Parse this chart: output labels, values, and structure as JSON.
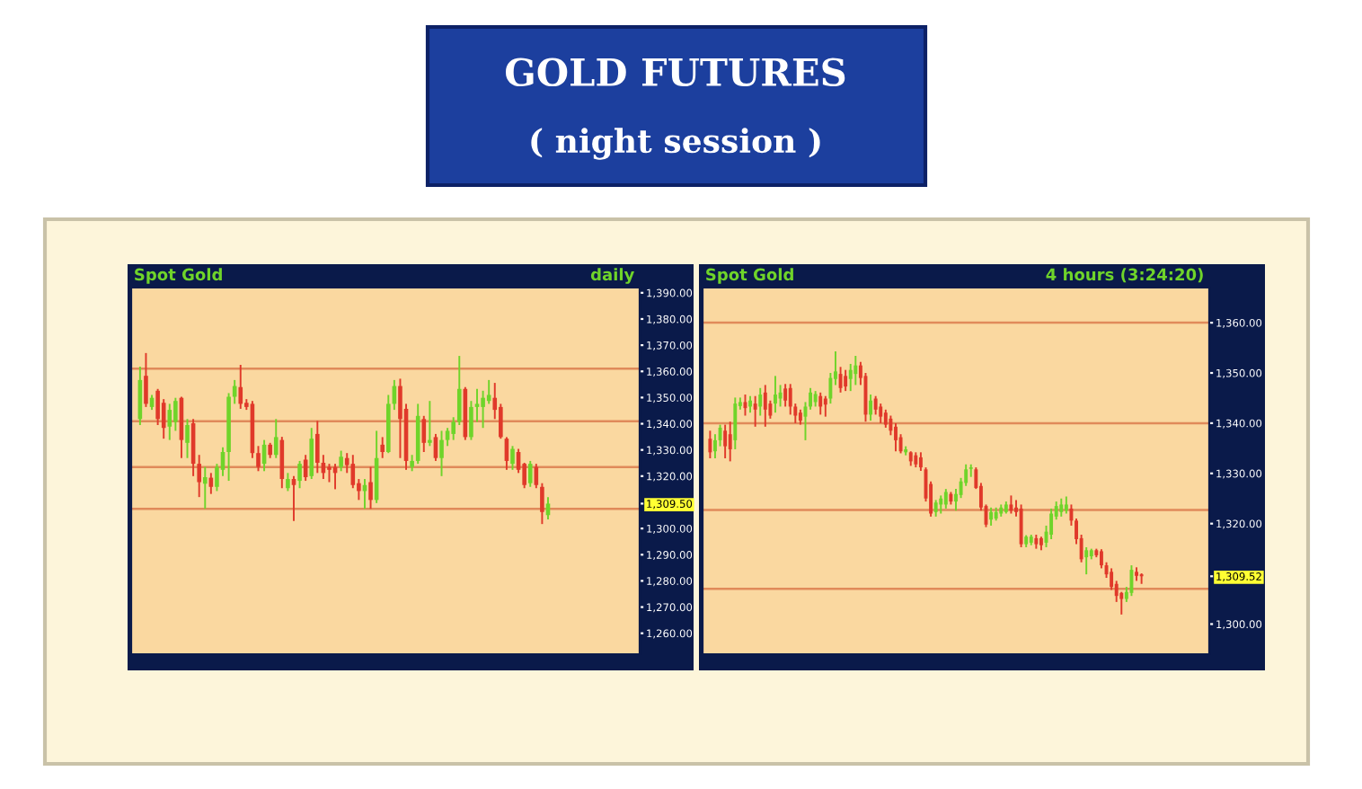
{
  "chart_data": [
    {
      "type": "candlestick",
      "title": "Spot Gold",
      "subtitle": "daily",
      "annotations": [
        "GOLD FUTURES",
        "( night session )"
      ],
      "categories": [
        null,
        null,
        null,
        null,
        null,
        null,
        null,
        null,
        null,
        null,
        null,
        null,
        null,
        null,
        null,
        null,
        null,
        null,
        null,
        null,
        null,
        null,
        null,
        null,
        null,
        null,
        null,
        null,
        null,
        null,
        null,
        null,
        null,
        null,
        null,
        null,
        null,
        null,
        null,
        null,
        null,
        null,
        null,
        null,
        null,
        null,
        null,
        null,
        null,
        null,
        null,
        null,
        null,
        null,
        null,
        null,
        null,
        null,
        null,
        null,
        null,
        null,
        null,
        null,
        null,
        null,
        null,
        null,
        null,
        null,
        null,
        null,
        null,
        null,
        null,
        null,
        null,
        null,
        null,
        null,
        null,
        null,
        null,
        null,
        null
      ],
      "ohlc": [
        [
          1341.8,
          1361.8,
          1339.5,
          1356.7
        ],
        [
          1358.3,
          1367,
          1346.4,
          1347.6
        ],
        [
          1346.4,
          1351,
          1345.3,
          1349.9
        ],
        [
          1352.6,
          1353.3,
          1339.5,
          1341.8
        ],
        [
          1348,
          1349.4,
          1334.3,
          1338.4
        ],
        [
          1338.9,
          1347.6,
          1333.8,
          1345.3
        ],
        [
          1340.7,
          1349.9,
          1337.3,
          1348.7
        ],
        [
          1349.9,
          1350.3,
          1326.9,
          1333.8
        ],
        [
          1332.7,
          1341.8,
          1326.9,
          1339.5
        ],
        [
          1340.2,
          1341.8,
          1320,
          1324.7
        ],
        [
          1324.7,
          1328.1,
          1312,
          1317.7
        ],
        [
          1317.1,
          1323.5,
          1307.5,
          1319.6
        ],
        [
          1319.4,
          1321.2,
          1313.2,
          1315.9
        ],
        [
          1315.9,
          1324.7,
          1314.3,
          1323.5
        ],
        [
          1322.4,
          1331,
          1320,
          1329.2
        ],
        [
          1329.2,
          1351.7,
          1318.2,
          1350.3
        ],
        [
          1350.3,
          1356.7,
          1347.6,
          1354.4
        ],
        [
          1354,
          1362.5,
          1345.7,
          1347.6
        ],
        [
          1348,
          1349.4,
          1345.3,
          1346.4
        ],
        [
          1347.6,
          1348.7,
          1326.9,
          1328.8
        ],
        [
          1328.8,
          1331.5,
          1321.9,
          1323.5
        ],
        [
          1324.7,
          1333.8,
          1321.9,
          1332
        ],
        [
          1332,
          1332.7,
          1326.9,
          1328.1
        ],
        [
          1328.1,
          1341.8,
          1326.9,
          1334.9
        ],
        [
          1333.8,
          1335,
          1315.4,
          1318.9
        ],
        [
          1315.4,
          1321.2,
          1314.3,
          1318.9
        ],
        [
          1318.9,
          1320,
          1302.9,
          1316.6
        ],
        [
          1318.2,
          1325.8,
          1315.4,
          1324.7
        ],
        [
          1326.3,
          1328.1,
          1318.2,
          1319.6
        ],
        [
          1320,
          1338.4,
          1318.9,
          1334.3
        ],
        [
          1336.1,
          1341.1,
          1321.2,
          1325.1
        ],
        [
          1325.1,
          1328.1,
          1318.9,
          1321.2
        ],
        [
          1323.5,
          1324.7,
          1317.7,
          1322.4
        ],
        [
          1323.5,
          1324.7,
          1315,
          1321.2
        ],
        [
          1323.5,
          1329.7,
          1321.9,
          1327.4
        ],
        [
          1326.9,
          1328.8,
          1321.2,
          1324.2
        ],
        [
          1324.7,
          1328.1,
          1315.4,
          1316.6
        ],
        [
          1317.3,
          1318.9,
          1310.9,
          1314.3
        ],
        [
          1314.3,
          1318.9,
          1307.5,
          1316.6
        ],
        [
          1317.7,
          1323.5,
          1307.5,
          1310.9
        ],
        [
          1310.9,
          1337.3,
          1309.7,
          1326.9
        ],
        [
          1332,
          1334.9,
          1326.9,
          1329.2
        ],
        [
          1329.2,
          1351,
          1328.8,
          1347.6
        ],
        [
          1347.6,
          1356.7,
          1345.3,
          1354.4
        ],
        [
          1354.4,
          1357.2,
          1326.9,
          1341.8
        ],
        [
          1345.7,
          1347.6,
          1322.4,
          1325.8
        ],
        [
          1323.5,
          1328.1,
          1321.9,
          1325.8
        ],
        [
          1325.8,
          1347.6,
          1324.7,
          1343
        ],
        [
          1341.8,
          1343,
          1329.2,
          1332.7
        ],
        [
          1332.7,
          1348.7,
          1331.5,
          1333.8
        ],
        [
          1334.9,
          1336.1,
          1325.8,
          1326.9
        ],
        [
          1326.9,
          1337.3,
          1320,
          1333.8
        ],
        [
          1333.8,
          1338.4,
          1331.5,
          1337.3
        ],
        [
          1336.1,
          1342.5,
          1333.8,
          1340.7
        ],
        [
          1340.7,
          1365.9,
          1339.5,
          1353.3
        ],
        [
          1353.3,
          1354,
          1333.8,
          1334.9
        ],
        [
          1334.9,
          1348.7,
          1333.8,
          1346.4
        ],
        [
          1346.4,
          1353.3,
          1340.7,
          1347.6
        ],
        [
          1346.4,
          1352.6,
          1338.4,
          1349.9
        ],
        [
          1348.7,
          1356.7,
          1347.6,
          1351
        ],
        [
          1349.9,
          1355.6,
          1341.8,
          1345.3
        ],
        [
          1346.4,
          1347.6,
          1334.3,
          1334.9
        ],
        [
          1334.3,
          1334.9,
          1322.4,
          1325.8
        ],
        [
          1324.7,
          1331.5,
          1322.4,
          1330.4
        ],
        [
          1329.2,
          1330.4,
          1321.2,
          1322.4
        ],
        [
          1324.7,
          1325.1,
          1315.4,
          1316.6
        ],
        [
          1317.3,
          1325.8,
          1315.9,
          1324.7
        ],
        [
          1323.5,
          1324.7,
          1315.4,
          1316.6
        ],
        [
          1315.9,
          1317.3,
          1301.7,
          1306.3
        ],
        [
          1305.1,
          1312,
          1303.5,
          1309.5
        ],
        null,
        null,
        null,
        null,
        null,
        null,
        null,
        null,
        null,
        null,
        null,
        null,
        null,
        null,
        null
      ],
      "ylim": [
        1252,
        1392
      ],
      "yticks": [
        {
          "value": 1390,
          "label": "1,390.00"
        },
        {
          "value": 1380,
          "label": "1,380.00"
        },
        {
          "value": 1370,
          "label": "1,370.00"
        },
        {
          "value": 1360,
          "label": "1,360.00"
        },
        {
          "value": 1350,
          "label": "1,350.00"
        },
        {
          "value": 1340,
          "label": "1,340.00"
        },
        {
          "value": 1330,
          "label": "1,330.00"
        },
        {
          "value": 1320,
          "label": "1,320.00"
        },
        {
          "value": 1309.5,
          "label": "1,309.50"
        },
        {
          "value": 1300,
          "label": "1,300.00"
        },
        {
          "value": 1290,
          "label": "1,290.00"
        },
        {
          "value": 1280,
          "label": "1,280.00"
        },
        {
          "value": 1270,
          "label": "1,270.00"
        },
        {
          "value": 1260,
          "label": "1,260.00"
        }
      ],
      "ref_lines": [
        {
          "axis": "y",
          "value": 1361,
          "color": "#e08a5a"
        },
        {
          "axis": "y",
          "value": 1341,
          "color": "#e08a5a"
        },
        {
          "axis": "y",
          "value": 1323.5,
          "color": "#e08a5a"
        },
        {
          "axis": "y",
          "value": 1307.5,
          "color": "#e08a5a"
        }
      ],
      "tick_labels": "y",
      "grid": false
    },
    {
      "type": "candlestick",
      "title": "Spot Gold",
      "subtitle": "4 hours (3:24:20)",
      "categories": [
        null,
        null,
        null,
        null,
        null,
        null,
        null,
        null,
        null,
        null,
        null,
        null,
        null,
        null,
        null,
        null,
        null,
        null,
        null,
        null,
        null,
        null,
        null,
        null,
        null,
        null,
        null,
        null,
        null,
        null,
        null,
        null,
        null,
        null,
        null,
        null,
        null,
        null,
        null,
        null,
        null,
        null,
        null,
        null,
        null,
        null,
        null,
        null,
        null,
        null,
        null,
        null,
        null,
        null,
        null,
        null,
        null,
        null,
        null,
        null,
        null,
        null,
        null,
        null,
        null,
        null,
        null,
        null,
        null,
        null,
        null,
        null,
        null,
        null,
        null,
        null,
        null,
        null,
        null,
        null,
        null,
        null,
        null,
        null,
        null,
        null,
        null,
        null,
        null,
        null,
        null,
        null,
        null,
        null,
        null,
        null,
        null,
        null,
        null,
        null
      ],
      "ohlc": [
        [
          1336.9,
          1338.5,
          1333.0,
          1334.2
        ],
        [
          1334.4,
          1337.8,
          1333.0,
          1336.6
        ],
        [
          1336.6,
          1339.7,
          1335.4,
          1339.1
        ],
        [
          1338.5,
          1339.7,
          1333.0,
          1335.4
        ],
        [
          1337.8,
          1340.3,
          1332.4,
          1334.8
        ],
        [
          1336.6,
          1345.1,
          1334.8,
          1343.9
        ],
        [
          1343.4,
          1345.1,
          1342.7,
          1344.2
        ],
        [
          1344.2,
          1345.7,
          1341.5,
          1343.0
        ],
        [
          1343.3,
          1345.4,
          1342.1,
          1344.5
        ],
        [
          1343.9,
          1345.4,
          1339.3,
          1342.7
        ],
        [
          1343.3,
          1347.0,
          1341.5,
          1345.7
        ],
        [
          1346.1,
          1347.6,
          1339.3,
          1342.7
        ],
        [
          1343.9,
          1344.5,
          1340.9,
          1341.5
        ],
        [
          1343.9,
          1349.4,
          1342.1,
          1345.7
        ],
        [
          1344.9,
          1347.6,
          1343.3,
          1346.1
        ],
        [
          1346.9,
          1347.8,
          1343.3,
          1344.5
        ],
        [
          1347.0,
          1347.8,
          1341.7,
          1343.3
        ],
        [
          1343.3,
          1343.9,
          1340.0,
          1341.5
        ],
        [
          1342.1,
          1342.7,
          1339.7,
          1340.5
        ],
        [
          1341.3,
          1344.2,
          1336.6,
          1343.3
        ],
        [
          1343.3,
          1347.0,
          1342.7,
          1346.1
        ],
        [
          1344.2,
          1346.4,
          1343.3,
          1345.8
        ],
        [
          1345.4,
          1346.1,
          1341.7,
          1343.3
        ],
        [
          1344.9,
          1345.4,
          1341.3,
          1343.7
        ],
        [
          1344.9,
          1350.0,
          1343.9,
          1349.0
        ],
        [
          1348.8,
          1354.3,
          1347.6,
          1350.3
        ],
        [
          1349.8,
          1351.2,
          1346.1,
          1347.0
        ],
        [
          1349.4,
          1350.6,
          1346.4,
          1347.3
        ],
        [
          1348.8,
          1351.8,
          1346.4,
          1350.6
        ],
        [
          1349.8,
          1353.4,
          1347.6,
          1351.5
        ],
        [
          1351.5,
          1352.2,
          1347.6,
          1349.0
        ],
        [
          1349.4,
          1350.0,
          1340.3,
          1341.7
        ],
        [
          1341.7,
          1345.7,
          1340.5,
          1344.5
        ],
        [
          1344.9,
          1345.4,
          1341.7,
          1342.7
        ],
        [
          1343.3,
          1343.9,
          1340.0,
          1341.3
        ],
        [
          1342.1,
          1342.7,
          1339.1,
          1339.7
        ],
        [
          1340.9,
          1341.5,
          1337.6,
          1338.5
        ],
        [
          1339.3,
          1340.0,
          1334.4,
          1336.6
        ],
        [
          1337.2,
          1337.8,
          1334.0,
          1334.4
        ],
        [
          1334.2,
          1335.4,
          1333.6,
          1334.8
        ],
        [
          1334.2,
          1334.4,
          1331.5,
          1332.4
        ],
        [
          1333.6,
          1334.2,
          1331.2,
          1331.8
        ],
        [
          1333.2,
          1334.2,
          1330.5,
          1331.2
        ],
        [
          1330.8,
          1331.2,
          1324.4,
          1325.0
        ],
        [
          1327.9,
          1328.4,
          1321.4,
          1322.0
        ],
        [
          1322.3,
          1324.7,
          1321.4,
          1324.2
        ],
        [
          1323.8,
          1325.6,
          1322.0,
          1325.0
        ],
        [
          1323.8,
          1326.9,
          1323.0,
          1326.3
        ],
        [
          1325.9,
          1326.3,
          1323.8,
          1324.4
        ],
        [
          1324.4,
          1326.9,
          1322.6,
          1325.9
        ],
        [
          1325.7,
          1329.1,
          1325.1,
          1328.4
        ],
        [
          1328.1,
          1331.8,
          1327.5,
          1330.8
        ],
        [
          1330.9,
          1331.8,
          1329.3,
          1331.2
        ],
        [
          1330.8,
          1331.2,
          1326.9,
          1327.1
        ],
        [
          1327.5,
          1328.1,
          1322.6,
          1323.2
        ],
        [
          1323.5,
          1323.8,
          1319.3,
          1319.8
        ],
        [
          1320.8,
          1323.2,
          1319.6,
          1322.3
        ],
        [
          1321.0,
          1323.2,
          1320.6,
          1322.3
        ],
        [
          1322.0,
          1323.8,
          1321.4,
          1323.2
        ],
        [
          1322.3,
          1324.4,
          1322.0,
          1323.8
        ],
        [
          1323.8,
          1325.6,
          1322.0,
          1322.6
        ],
        [
          1323.2,
          1324.7,
          1321.4,
          1322.3
        ],
        [
          1323.0,
          1323.8,
          1315.3,
          1315.9
        ],
        [
          1315.9,
          1317.7,
          1315.3,
          1317.4
        ],
        [
          1316.2,
          1317.8,
          1315.7,
          1317.4
        ],
        [
          1317.1,
          1317.8,
          1315.0,
          1315.9
        ],
        [
          1317.1,
          1317.4,
          1314.7,
          1315.7
        ],
        [
          1316.2,
          1319.6,
          1315.3,
          1318.4
        ],
        [
          1317.8,
          1323.0,
          1316.9,
          1322.0
        ],
        [
          1321.4,
          1324.4,
          1320.8,
          1323.5
        ],
        [
          1322.3,
          1325.0,
          1321.4,
          1323.8
        ],
        [
          1322.6,
          1325.4,
          1322.0,
          1323.8
        ],
        [
          1323.0,
          1323.8,
          1319.6,
          1320.6
        ],
        [
          1320.6,
          1321.0,
          1315.9,
          1316.9
        ],
        [
          1317.1,
          1317.8,
          1312.3,
          1312.9
        ],
        [
          1313.3,
          1315.3,
          1309.9,
          1314.7
        ],
        [
          1313.5,
          1315.0,
          1312.9,
          1314.7
        ],
        [
          1314.7,
          1315.0,
          1313.3,
          1313.7
        ],
        [
          1314.5,
          1314.9,
          1311.1,
          1311.7
        ],
        [
          1311.7,
          1312.3,
          1309.2,
          1309.9
        ],
        [
          1310.4,
          1311.1,
          1306.8,
          1307.4
        ],
        [
          1308.0,
          1308.6,
          1304.4,
          1305.6
        ],
        [
          1306.2,
          1306.4,
          1301.9,
          1305.0
        ],
        [
          1305.0,
          1307.4,
          1304.4,
          1306.4
        ],
        [
          1306.2,
          1311.7,
          1305.6,
          1310.8
        ],
        [
          1310.4,
          1311.3,
          1308.6,
          1309.6
        ],
        [
          1309.9,
          1310.1,
          1308.0,
          1309.52
        ],
        null,
        null,
        null,
        null,
        null,
        null,
        null,
        null,
        null,
        null,
        null,
        null,
        null
      ],
      "ylim": [
        1294,
        1367
      ],
      "yticks": [
        {
          "value": 1360,
          "label": "1,360.00"
        },
        {
          "value": 1350,
          "label": "1,350.00"
        },
        {
          "value": 1340,
          "label": "1,340.00"
        },
        {
          "value": 1330,
          "label": "1,330.00"
        },
        {
          "value": 1320,
          "label": "1,320.00"
        },
        {
          "value": 1309.52,
          "label": "1,309.52"
        },
        {
          "value": 1300,
          "label": "1,300.00"
        }
      ],
      "ref_lines": [
        {
          "axis": "y",
          "value": 1360,
          "color": "#e08a5a"
        },
        {
          "axis": "y",
          "value": 1340,
          "color": "#e08a5a"
        },
        {
          "axis": "y",
          "value": 1322.7,
          "color": "#e08a5a"
        },
        {
          "axis": "y",
          "value": 1307,
          "color": "#e08a5a"
        }
      ],
      "tick_labels": "y",
      "grid": false
    }
  ]
}
